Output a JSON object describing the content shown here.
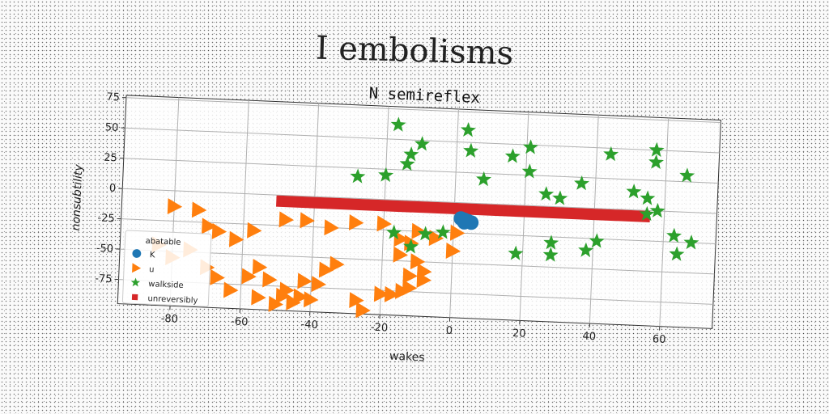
{
  "suptitle": "I embolisms",
  "chart_data": {
    "type": "scatter",
    "title": "N semireflex",
    "xlabel": "wakes",
    "ylabel": "nonsubtility",
    "xlim": [
      -95,
      75
    ],
    "ylim": [
      -95,
      77
    ],
    "xticks": [
      -80,
      -60,
      -40,
      -20,
      0,
      20,
      40,
      60
    ],
    "yticks": [
      75,
      50,
      25,
      0,
      -25,
      -50,
      -75
    ],
    "grid": true,
    "legend": {
      "title": "abatable",
      "placement": "lower-left"
    },
    "series": [
      {
        "name": "K",
        "marker": "circle",
        "color": "#1f77b4",
        "points": [
          [
            2,
            -13
          ],
          [
            3,
            -14
          ],
          [
            4,
            -15
          ],
          [
            5,
            -16
          ],
          [
            3,
            -16
          ]
        ]
      },
      {
        "name": "u",
        "marker": "triangle-right",
        "color": "#ff7f0e",
        "points": [
          [
            -80,
            -13
          ],
          [
            -73,
            -15
          ],
          [
            -70,
            -28
          ],
          [
            -67,
            -32
          ],
          [
            -62,
            -38
          ],
          [
            -57,
            -30
          ],
          [
            -84,
            -45
          ],
          [
            -80,
            -55
          ],
          [
            -75,
            -48
          ],
          [
            -70,
            -62
          ],
          [
            -67,
            -70
          ],
          [
            -63,
            -80
          ],
          [
            -58,
            -68
          ],
          [
            -55,
            -60
          ],
          [
            -52,
            -70
          ],
          [
            -48,
            -83
          ],
          [
            -45,
            -88
          ],
          [
            -42,
            -70
          ],
          [
            -38,
            -72
          ],
          [
            -36,
            -60
          ],
          [
            -33,
            -55
          ],
          [
            -55,
            -85
          ],
          [
            -50,
            -90
          ],
          [
            -47,
            -78
          ],
          [
            -43,
            -83
          ],
          [
            -40,
            -85
          ],
          [
            -20,
            -78
          ],
          [
            -17,
            -78
          ],
          [
            -14,
            -75
          ],
          [
            -25,
            -92
          ],
          [
            -27,
            -84
          ],
          [
            -28,
            -20
          ],
          [
            -42,
            -20
          ],
          [
            -35,
            -25
          ],
          [
            -48,
            -20
          ],
          [
            -20,
            -20
          ],
          [
            -15,
            -32
          ],
          [
            -12,
            -35
          ],
          [
            -10,
            -25
          ],
          [
            -5,
            -30
          ],
          [
            0,
            -40
          ],
          [
            1,
            -25
          ],
          [
            -10,
            -50
          ],
          [
            -8,
            -58
          ],
          [
            -12,
            -62
          ],
          [
            -8,
            -65
          ],
          [
            -12,
            -72
          ],
          [
            -15,
            -45
          ]
        ]
      },
      {
        "name": "walkside",
        "marker": "star",
        "color": "#2ca02c",
        "points": [
          [
            -17,
            62
          ],
          [
            -10,
            47
          ],
          [
            -13,
            38
          ],
          [
            -14,
            30
          ],
          [
            -20,
            20
          ],
          [
            -28,
            18
          ],
          [
            3,
            60
          ],
          [
            4,
            43
          ],
          [
            8,
            20
          ],
          [
            16,
            40
          ],
          [
            21,
            48
          ],
          [
            21,
            28
          ],
          [
            26,
            10
          ],
          [
            30,
            7
          ],
          [
            36,
            20
          ],
          [
            44,
            45
          ],
          [
            51,
            15
          ],
          [
            55,
            10
          ],
          [
            57,
            50
          ],
          [
            57,
            40
          ],
          [
            58,
            0
          ],
          [
            66,
            30
          ],
          [
            63,
            -20
          ],
          [
            64,
            -35
          ],
          [
            68,
            -25
          ],
          [
            -17,
            -27
          ],
          [
            -12,
            -38
          ],
          [
            -8,
            -27
          ],
          [
            -3,
            -25
          ],
          [
            18,
            -40
          ],
          [
            28,
            -40
          ],
          [
            28,
            -30
          ],
          [
            38,
            -35
          ],
          [
            41,
            -27
          ],
          [
            55,
            -3
          ]
        ]
      },
      {
        "name": "unreversibly",
        "marker": "square",
        "color": "#d62728",
        "segment": {
          "x": [
            -50,
            55
          ],
          "y": [
            -5,
            -5
          ]
        }
      }
    ]
  }
}
